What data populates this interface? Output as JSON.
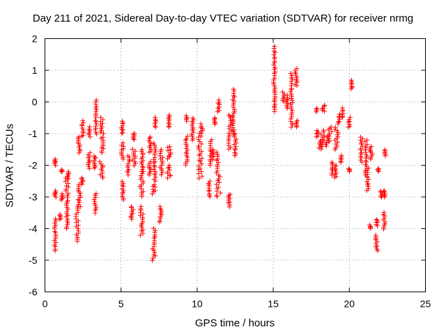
{
  "chart_data": {
    "type": "scatter",
    "title": "Day 211 of 2021, Sidereal Day-to-day VTEC variation (SDTVAR) for receiver nrmg",
    "xlabel": "GPS time / hours",
    "ylabel": "SDTVAR / TECUs",
    "xlim": [
      0,
      25
    ],
    "ylim": [
      -6,
      2
    ],
    "xticks": [
      0,
      5,
      10,
      15,
      20,
      25
    ],
    "yticks": [
      -6,
      -5,
      -4,
      -3,
      -2,
      -1,
      0,
      1,
      2
    ],
    "grid": true,
    "marker": "+",
    "color": "#ff0000",
    "series": [
      {
        "name": "SDTVAR",
        "segments": [
          [
            0.6,
            0.75,
            -4.7,
            -3.7
          ],
          [
            0.6,
            0.75,
            -3.0,
            -2.8
          ],
          [
            0.6,
            0.75,
            -2.0,
            -1.8
          ],
          [
            0.95,
            1.05,
            -3.7,
            -3.55
          ],
          [
            1.0,
            1.2,
            -3.1,
            -2.9
          ],
          [
            1.05,
            1.15,
            -2.2,
            -2.15
          ],
          [
            1.3,
            1.6,
            -3.0,
            -2.4
          ],
          [
            1.35,
            1.55,
            -4.0,
            -3.1
          ],
          [
            1.4,
            1.6,
            -2.4,
            -2.2
          ],
          [
            2.0,
            2.25,
            -4.4,
            -3.3
          ],
          [
            2.1,
            2.4,
            -3.3,
            -2.6
          ],
          [
            2.1,
            2.4,
            -1.6,
            -1.1
          ],
          [
            2.35,
            2.55,
            -2.6,
            -2.4
          ],
          [
            2.4,
            2.55,
            -1.1,
            -0.6
          ],
          [
            2.8,
            3.0,
            -2.1,
            -1.6
          ],
          [
            2.85,
            3.0,
            -1.1,
            -0.8
          ],
          [
            3.2,
            3.4,
            -3.5,
            -2.9
          ],
          [
            3.2,
            3.35,
            -2.1,
            -1.7
          ],
          [
            3.3,
            3.4,
            -1.0,
            0.05
          ],
          [
            3.5,
            3.9,
            -2.4,
            -1.9
          ],
          [
            3.6,
            3.9,
            -1.0,
            -0.5
          ],
          [
            3.65,
            3.9,
            -1.6,
            -1.1
          ],
          [
            5.0,
            5.2,
            -3.1,
            -2.5
          ],
          [
            5.0,
            5.2,
            -1.8,
            -1.3
          ],
          [
            5.0,
            5.15,
            -1.0,
            -0.6
          ],
          [
            5.4,
            5.6,
            -2.3,
            -1.7
          ],
          [
            5.6,
            5.85,
            -3.7,
            -3.3
          ],
          [
            5.7,
            6.0,
            -2.0,
            -1.5
          ],
          [
            5.75,
            5.95,
            -1.2,
            -1.0
          ],
          [
            6.2,
            6.5,
            -4.2,
            -3.3
          ],
          [
            6.2,
            6.5,
            -3.0,
            -2.2
          ],
          [
            6.3,
            6.5,
            -2.2,
            -1.5
          ],
          [
            6.8,
            7.0,
            -1.6,
            -1.1
          ],
          [
            6.8,
            7.0,
            -2.3,
            -1.9
          ],
          [
            7.0,
            7.3,
            -5.0,
            -4.0
          ],
          [
            7.0,
            7.3,
            -2.9,
            -2.6
          ],
          [
            7.1,
            7.3,
            -2.5,
            -1.3
          ],
          [
            7.2,
            7.3,
            -0.8,
            -0.5
          ],
          [
            7.5,
            7.7,
            -3.8,
            -3.3
          ],
          [
            7.5,
            7.8,
            -2.3,
            -1.5
          ],
          [
            8.0,
            8.3,
            -2.4,
            -2.0
          ],
          [
            8.0,
            8.3,
            -1.8,
            -1.4
          ],
          [
            8.1,
            8.2,
            -0.8,
            -0.4
          ],
          [
            9.2,
            9.4,
            -2.0,
            -1.1
          ],
          [
            9.25,
            9.35,
            -0.6,
            -0.45
          ],
          [
            9.6,
            9.8,
            -1.2,
            -0.5
          ],
          [
            10.0,
            10.4,
            -2.4,
            -1.0
          ],
          [
            10.2,
            10.4,
            -1.0,
            -0.7
          ],
          [
            10.7,
            10.9,
            -3.0,
            -2.5
          ],
          [
            10.8,
            11.0,
            -2.0,
            -1.2
          ],
          [
            11.0,
            11.1,
            -1.8,
            -1.5
          ],
          [
            11.1,
            11.2,
            -0.7,
            -0.5
          ],
          [
            11.2,
            11.6,
            -3.0,
            -1.6
          ],
          [
            11.3,
            11.5,
            -0.3,
            0.05
          ],
          [
            12.0,
            12.2,
            -3.3,
            -2.9
          ],
          [
            12.0,
            12.3,
            -1.5,
            -0.4
          ],
          [
            12.3,
            12.5,
            -1.0,
            0.4
          ],
          [
            12.4,
            12.6,
            -1.7,
            -1.0
          ],
          [
            15.0,
            15.15,
            0.3,
            1.75
          ],
          [
            15.05,
            15.15,
            -0.3,
            0.3
          ],
          [
            15.6,
            15.75,
            0.0,
            0.3
          ],
          [
            15.8,
            16.0,
            -0.2,
            0.2
          ],
          [
            16.1,
            16.3,
            -0.8,
            0.9
          ],
          [
            16.4,
            16.6,
            0.5,
            1.05
          ],
          [
            16.5,
            16.6,
            -0.8,
            -0.6
          ],
          [
            17.8,
            17.9,
            -0.3,
            -0.2
          ],
          [
            17.8,
            18.0,
            -1.1,
            -0.9
          ],
          [
            17.9,
            18.2,
            -1.5,
            -1.2
          ],
          [
            18.1,
            18.4,
            -1.4,
            -0.9
          ],
          [
            18.2,
            18.4,
            -0.3,
            -0.1
          ],
          [
            18.3,
            18.8,
            -1.4,
            -1.1
          ],
          [
            18.5,
            18.9,
            -1.2,
            -0.8
          ],
          [
            18.8,
            19.1,
            -2.3,
            -1.9
          ],
          [
            18.9,
            19.2,
            -2.4,
            -2.0
          ],
          [
            19.0,
            19.3,
            -1.5,
            -0.8
          ],
          [
            19.2,
            19.4,
            -0.7,
            -0.4
          ],
          [
            19.4,
            19.5,
            -1.9,
            -1.7
          ],
          [
            19.5,
            19.6,
            -0.5,
            -0.2
          ],
          [
            19.9,
            20.1,
            -2.2,
            -2.1
          ],
          [
            19.9,
            20.1,
            -0.8,
            -0.5
          ],
          [
            20.1,
            20.2,
            0.4,
            0.7
          ],
          [
            20.7,
            20.9,
            -1.9,
            -1.1
          ],
          [
            21.0,
            21.2,
            -2.3,
            -1.2
          ],
          [
            21.1,
            21.3,
            -2.8,
            -2.1
          ],
          [
            21.3,
            21.45,
            -4.0,
            -3.9
          ],
          [
            21.3,
            21.6,
            -1.8,
            -1.4
          ],
          [
            21.7,
            21.9,
            -4.7,
            -4.2
          ],
          [
            21.7,
            21.9,
            -3.9,
            -3.7
          ],
          [
            21.8,
            21.95,
            -2.2,
            -2.1
          ],
          [
            22.0,
            22.2,
            -3.0,
            -2.8
          ],
          [
            22.2,
            22.4,
            -4.0,
            -3.5
          ],
          [
            22.2,
            22.4,
            -3.0,
            -2.8
          ],
          [
            22.3,
            22.45,
            -1.7,
            -1.5
          ]
        ]
      }
    ]
  }
}
